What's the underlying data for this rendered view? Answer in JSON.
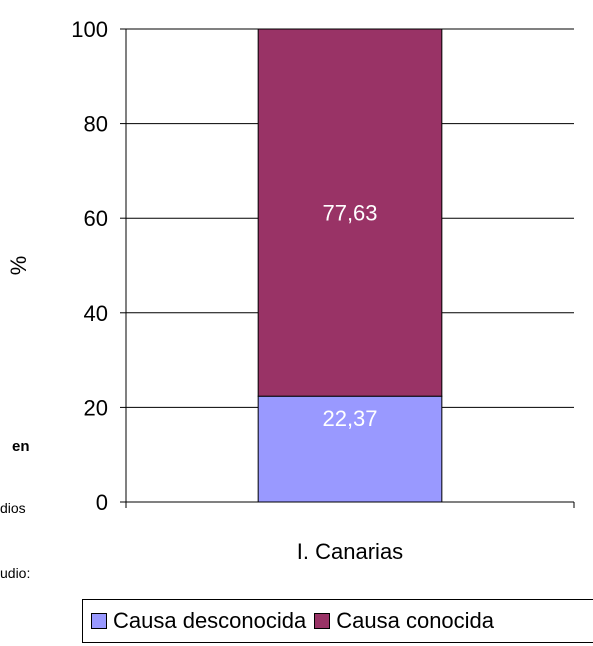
{
  "chart_data": {
    "type": "bar",
    "stacked": true,
    "categories": [
      "I. Canarias"
    ],
    "series": [
      {
        "name": "Causa desconocida",
        "values": [
          22.37
        ],
        "labels": [
          "22,37"
        ],
        "color": "#9999ff"
      },
      {
        "name": "Causa conocida",
        "values": [
          77.63
        ],
        "labels": [
          "77,63"
        ],
        "color": "#993366"
      }
    ],
    "ylabel": "%",
    "ylim": [
      0,
      100
    ],
    "yticks": [
      "0",
      "20",
      "40",
      "60",
      "80",
      "100"
    ],
    "grid": true,
    "legend_position": "bottom"
  },
  "side_text": {
    "fragment_1": "en",
    "fragment_2": "dios",
    "fragment_3": "udio:"
  }
}
